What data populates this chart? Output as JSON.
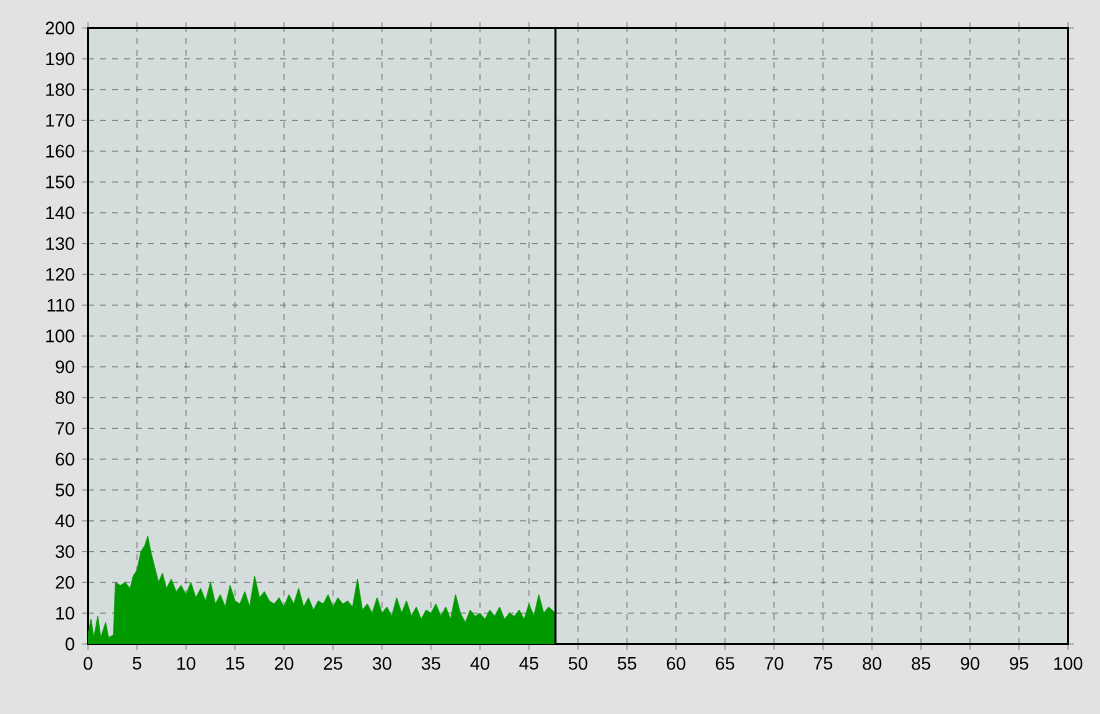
{
  "chart_data": {
    "type": "area",
    "x": [
      0,
      0.3,
      0.6,
      1,
      1.3,
      1.8,
      2.1,
      2.6,
      2.8,
      3.3,
      3.8,
      4.3,
      4.6,
      5,
      5.4,
      5.8,
      6.1,
      6.4,
      6.8,
      7.2,
      7.6,
      8,
      8.5,
      9,
      9.5,
      10,
      10.5,
      11,
      11.5,
      12,
      12.5,
      13,
      13.5,
      14,
      14.5,
      15,
      15.5,
      16,
      16.5,
      17,
      17.5,
      18,
      18.5,
      19,
      19.5,
      20,
      20.5,
      21,
      21.5,
      22,
      22.5,
      23,
      23.5,
      24,
      24.5,
      25,
      25.5,
      26,
      26.5,
      27,
      27.5,
      28,
      28.5,
      29,
      29.5,
      30,
      30.5,
      31,
      31.5,
      32,
      32.5,
      33,
      33.5,
      34,
      34.5,
      35,
      35.5,
      36,
      36.5,
      37,
      37.5,
      38,
      38.5,
      39,
      39.5,
      40,
      40.5,
      41,
      41.5,
      42,
      42.5,
      43,
      43.5,
      44,
      44.5,
      45,
      45.5,
      46,
      46.5,
      47,
      47.7
    ],
    "values": [
      3,
      8,
      2,
      9,
      2,
      7,
      2,
      3,
      20,
      19,
      20,
      18,
      22,
      24,
      30,
      32,
      35,
      30,
      25,
      20,
      23,
      18,
      21,
      17,
      19,
      16,
      20,
      15,
      18,
      14,
      20,
      13,
      16,
      12,
      19,
      14,
      13,
      17,
      12,
      22,
      15,
      17,
      14,
      13,
      15,
      12,
      16,
      13,
      18,
      12,
      15,
      11,
      14,
      13,
      16,
      12,
      15,
      13,
      14,
      12,
      21,
      11,
      13,
      10,
      15,
      10,
      12,
      9,
      15,
      10,
      14,
      9,
      12,
      8,
      11,
      10,
      13,
      9,
      12,
      8,
      16,
      10,
      7,
      11,
      9,
      10,
      8,
      11,
      9,
      12,
      8,
      10,
      9,
      11,
      8,
      13,
      9,
      16,
      10,
      12,
      10
    ],
    "color": "#009900",
    "xlim": [
      0,
      100
    ],
    "xticks": [
      0,
      5,
      10,
      15,
      20,
      25,
      30,
      35,
      40,
      45,
      50,
      55,
      60,
      65,
      70,
      75,
      80,
      85,
      90,
      95,
      100
    ],
    "ylim": [
      0,
      200
    ],
    "yticks": [
      0,
      10,
      20,
      30,
      40,
      50,
      60,
      70,
      80,
      90,
      100,
      110,
      120,
      130,
      140,
      150,
      160,
      170,
      180,
      190,
      200
    ],
    "grid": true,
    "ref_lines": [
      {
        "axis": "x",
        "value": 47.7,
        "color": "#000000"
      }
    ]
  }
}
